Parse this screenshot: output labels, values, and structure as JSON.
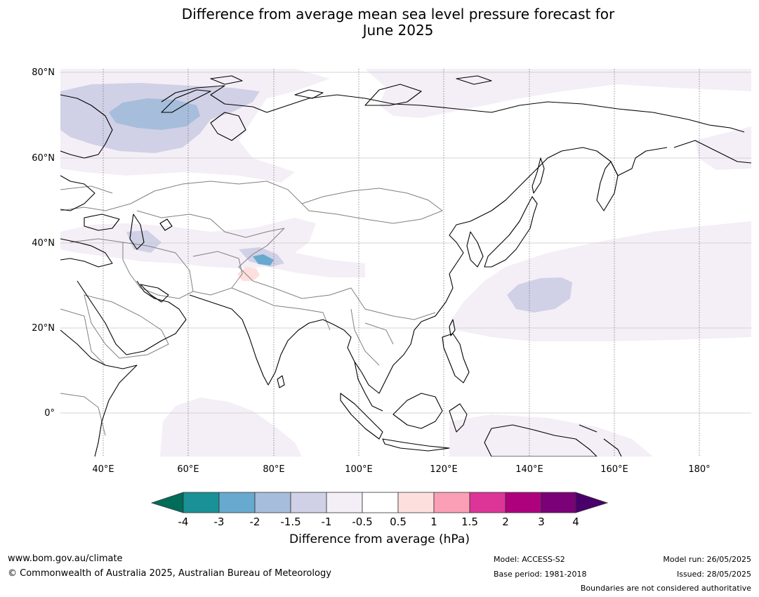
{
  "title": {
    "line1": "Difference from average mean sea level pressure forecast for",
    "line2": "June 2025"
  },
  "map": {
    "lat_labels": [
      "80°N",
      "60°N",
      "40°N",
      "20°N",
      "0°"
    ],
    "lon_labels": [
      "40°E",
      "60°E",
      "80°E",
      "100°E",
      "120°E",
      "140°E",
      "160°E",
      "180°"
    ],
    "land_fill": "#ffffff",
    "coastline_color": "#000000",
    "border_color": "#808080"
  },
  "colorbar": {
    "label": "Difference from average (hPa)",
    "ticks": [
      "-4",
      "-3",
      "-2",
      "-1.5",
      "-1",
      "-0.5",
      "0.5",
      "1",
      "1.5",
      "2",
      "3",
      "4"
    ],
    "colors": [
      "#1a9097",
      "#67a9cf",
      "#a6bddb",
      "#d0d1e6",
      "#f4eef6",
      "#ffffff",
      "#fde0dd",
      "#fa9fb5",
      "#dd3497",
      "#ae017e",
      "#7a0177"
    ],
    "under_color": "#016c59",
    "over_color": "#49006a"
  },
  "footer": {
    "website": "www.bom.gov.au/climate",
    "copyright": "© Commonwealth of Australia 2025, Australian Bureau of Meteorology",
    "model": "Model: ACCESS-S2",
    "base_period": "Base period: 1981-2018",
    "model_run": "Model run: 26/05/2025",
    "issued": "Issued: 28/05/2025",
    "disclaimer": "Boundaries are not considered authoritative"
  }
}
